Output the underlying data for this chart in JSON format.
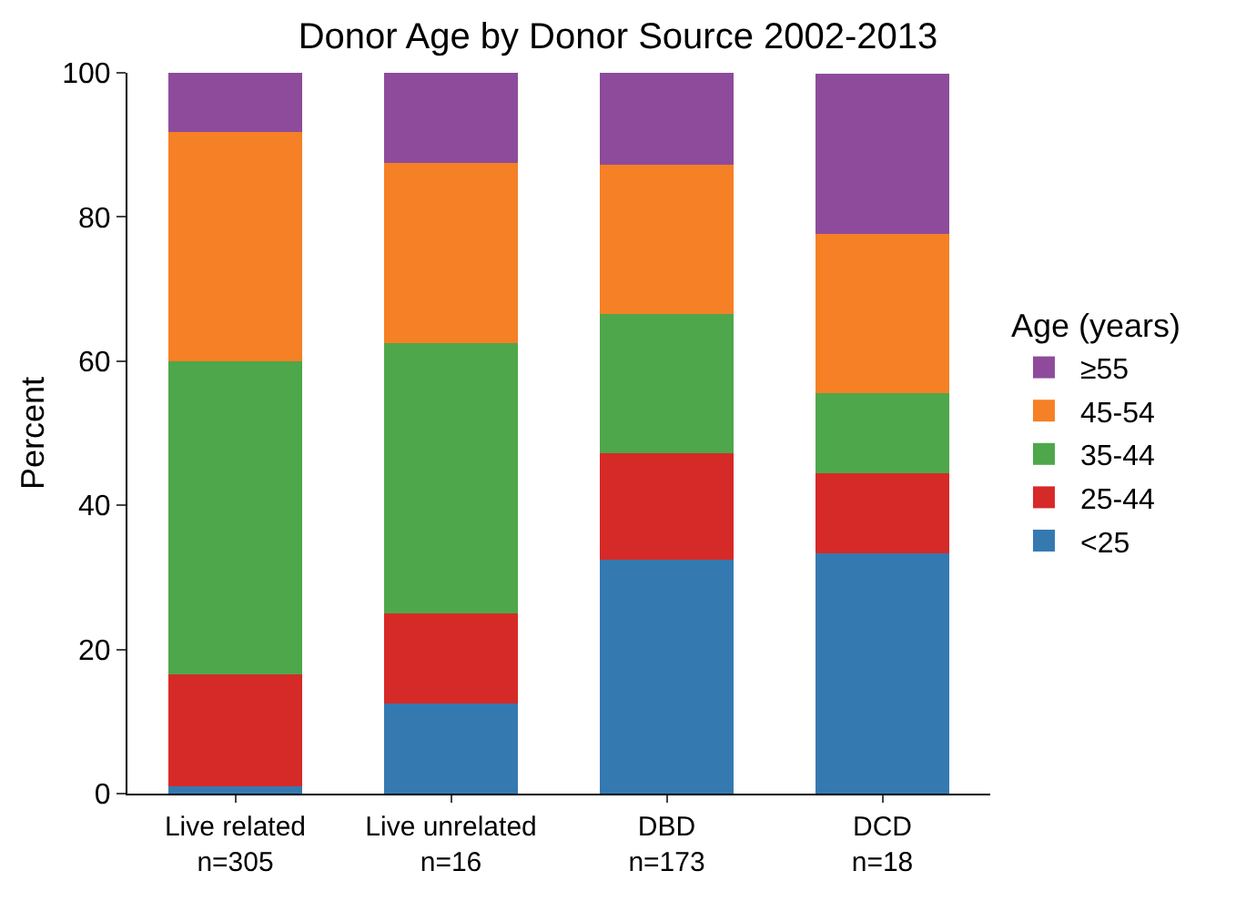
{
  "chart_data": {
    "type": "bar",
    "title": "Donor Age by Donor Source 2002-2013",
    "ylabel": "Percent",
    "legend_title": "Age (years)",
    "categories": [
      "Live related\nn=305",
      "Live unrelated\nn=16",
      "DBD\nn=173",
      "DCD\nn=18"
    ],
    "stacked": true,
    "ylim": [
      0,
      100
    ],
    "yticks": [
      0,
      20,
      40,
      60,
      80,
      100
    ],
    "grid": false,
    "legend": "right",
    "series": [
      {
        "name": "<25",
        "color": "#3579b1",
        "values": [
          1.0,
          12.5,
          32.4,
          33.3
        ]
      },
      {
        "name": "25-44",
        "color": "#d62a28",
        "values": [
          15.6,
          12.5,
          14.8,
          11.1
        ]
      },
      {
        "name": "35-44",
        "color": "#4ea74a",
        "values": [
          43.4,
          37.5,
          19.4,
          11.1
        ]
      },
      {
        "name": "45-54",
        "color": "#f58025",
        "values": [
          31.8,
          25.0,
          20.6,
          22.2
        ]
      },
      {
        "name": "≥55",
        "color": "#8e4b9b",
        "values": [
          8.2,
          12.5,
          12.8,
          22.2
        ]
      }
    ]
  }
}
